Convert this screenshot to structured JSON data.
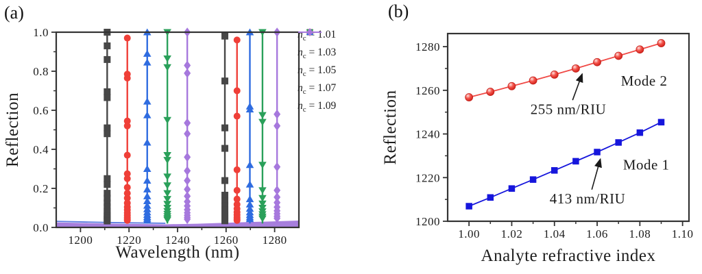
{
  "panel_a": {
    "tag": "(a)"
  },
  "panel_b": {
    "tag": "(b)"
  },
  "chart_data": [
    {
      "id": "a",
      "type": "line",
      "title": "",
      "xlabel": "Wavelength (nm)",
      "ylabel": "Reflection",
      "xlim": [
        1190,
        1290
      ],
      "ylim": [
        0.0,
        1.0
      ],
      "xticks": [
        1200,
        1220,
        1240,
        1260,
        1280
      ],
      "xtick_labels": [
        "1200",
        "1220",
        "1240",
        "1260",
        "1280"
      ],
      "x_minor_ticks": [
        1210,
        1230,
        1250,
        1270
      ],
      "yticks": [
        0.0,
        0.2,
        0.4,
        0.6,
        0.8,
        1.0
      ],
      "ytick_labels": [
        "0.0",
        "0.2",
        "0.4",
        "0.6",
        "0.8",
        "1.0"
      ],
      "y_minor_ticks": [
        0.1,
        0.3,
        0.5,
        0.7,
        0.9
      ],
      "grid": false,
      "legend_position": "right-outside",
      "legend_var": "n",
      "legend_sub": "c",
      "baseline": {
        "fill_color": "#a77fdd",
        "edge_color": "#5b7be0",
        "top_points": [
          [
            1190,
            0.026
          ],
          [
            1200,
            0.023
          ],
          [
            1215,
            0.019
          ],
          [
            1235,
            0.016
          ],
          [
            1248,
            0.019
          ],
          [
            1265,
            0.026
          ],
          [
            1280,
            0.031
          ],
          [
            1290,
            0.035
          ]
        ],
        "edge_until": 1246
      },
      "series": [
        {
          "name": "nc = 1.01",
          "value": "1.01",
          "color": "#474747",
          "marker": "square",
          "resonances": [
            {
              "wavelength": 1211.0,
              "markers": [
                1.0,
                0.93,
                0.86,
                0.695,
                0.665,
                0.51,
                0.48,
                0.25,
                0.22,
                0.175,
                0.15,
                0.125,
                0.105,
                0.085,
                0.07,
                0.058,
                0.048,
                0.04,
                0.033
              ]
            },
            {
              "wavelength": 1259.5,
              "markers": [
                0.98,
                0.75,
                0.51,
                0.405,
                0.24,
                0.165,
                0.135,
                0.11,
                0.09,
                0.074,
                0.061,
                0.05,
                0.041,
                0.034
              ]
            }
          ]
        },
        {
          "name": "nc = 1.03",
          "value": "1.03",
          "color": "#ef3f38",
          "marker": "circle",
          "resonances": [
            {
              "wavelength": 1219.3,
              "markers": [
                0.97,
                0.785,
                0.765,
                0.545,
                0.52,
                0.37,
                0.275,
                0.25,
                0.205,
                0.175,
                0.15,
                0.125,
                0.105,
                0.09,
                0.075,
                0.062,
                0.052,
                0.043,
                0.036
              ]
            },
            {
              "wavelength": 1264.5,
              "markers": [
                0.96,
                0.7,
                0.57,
                0.295,
                0.19,
                0.145,
                0.118,
                0.096,
                0.078,
                0.064,
                0.052,
                0.043,
                0.036
              ]
            }
          ]
        },
        {
          "name": "nc = 1.05",
          "value": "1.05",
          "color": "#2f6ce0",
          "marker": "triangle-up",
          "resonances": [
            {
              "wavelength": 1227.5,
              "markers": [
                1.0,
                0.89,
                0.845,
                0.645,
                0.575,
                0.435,
                0.3,
                0.24,
                0.195,
                0.16,
                0.135,
                0.112,
                0.094,
                0.078,
                0.065,
                0.054,
                0.045,
                0.037
              ]
            },
            {
              "wavelength": 1269.8,
              "markers": [
                1.0,
                0.62,
                0.605,
                0.32,
                0.22,
                0.145,
                0.118,
                0.096,
                0.078,
                0.064,
                0.052,
                0.043
              ]
            }
          ]
        },
        {
          "name": "nc = 1.07",
          "value": "1.07",
          "color": "#2aa05a",
          "marker": "triangle-down",
          "resonances": [
            {
              "wavelength": 1235.8,
              "markers": [
                1.0,
                0.865,
                0.82,
                0.55,
                0.37,
                0.345,
                0.26,
                0.215,
                0.175,
                0.145,
                0.12,
                0.1,
                0.083,
                0.069,
                0.057,
                0.047,
                0.039
              ]
            },
            {
              "wavelength": 1275.0,
              "markers": [
                1.0,
                0.575,
                0.54,
                0.32,
                0.19,
                0.15,
                0.122,
                0.1,
                0.082,
                0.067,
                0.055,
                0.045
              ]
            }
          ]
        },
        {
          "name": "nc = 1.09",
          "value": "1.09",
          "color": "#a678dd",
          "marker": "diamond",
          "resonances": [
            {
              "wavelength": 1244.0,
              "markers": [
                1.0,
                0.83,
                0.79,
                0.535,
                0.48,
                0.36,
                0.29,
                0.24,
                0.195,
                0.16,
                0.132,
                0.11,
                0.091,
                0.075,
                0.062,
                0.051,
                0.042
              ]
            },
            {
              "wavelength": 1281.0,
              "markers": [
                1.0,
                0.58,
                0.52,
                0.31,
                0.19,
                0.155,
                0.127,
                0.104,
                0.085,
                0.07,
                0.057,
                0.047
              ]
            }
          ]
        }
      ]
    },
    {
      "id": "b",
      "type": "scatter",
      "title": "",
      "xlabel": "Analyte refractive index",
      "ylabel": "Reflection",
      "xlim": [
        0.99,
        1.103
      ],
      "ylim": [
        1200,
        1286
      ],
      "xticks": [
        1.0,
        1.02,
        1.04,
        1.06,
        1.08,
        1.1
      ],
      "xtick_labels": [
        "1.00",
        "1.02",
        "1.04",
        "1.06",
        "1.08",
        "1.10"
      ],
      "x_minor_ticks": [
        1.01,
        1.03,
        1.05,
        1.07,
        1.09
      ],
      "yticks": [
        1200,
        1220,
        1240,
        1260,
        1280
      ],
      "ytick_labels": [
        "1200",
        "1220",
        "1240",
        "1260",
        "1280"
      ],
      "y_minor_ticks": [
        1210,
        1230,
        1250,
        1270
      ],
      "grid": false,
      "series": [
        {
          "name": "Mode 2",
          "sensitivity": "255 nm/RIU",
          "color": "#f04945",
          "marker": "sphere",
          "x": [
            1.0,
            1.01,
            1.02,
            1.03,
            1.04,
            1.05,
            1.06,
            1.07,
            1.08,
            1.09
          ],
          "y": [
            1256.8,
            1259.3,
            1261.9,
            1264.5,
            1267.2,
            1270.0,
            1272.9,
            1275.8,
            1278.7,
            1281.6
          ]
        },
        {
          "name": "Mode 1",
          "sensitivity": "413 nm/RIU",
          "color": "#1616dc",
          "marker": "square",
          "x": [
            1.0,
            1.01,
            1.02,
            1.03,
            1.04,
            1.05,
            1.06,
            1.07,
            1.08,
            1.09
          ],
          "y": [
            1206.9,
            1210.9,
            1215.0,
            1219.1,
            1223.3,
            1227.5,
            1231.7,
            1236.1,
            1240.6,
            1245.4
          ]
        }
      ],
      "annotations": [
        {
          "text": "Mode 2",
          "x": 1.082,
          "y": 1264.5
        },
        {
          "text": "255 nm/RIU",
          "x": 1.0465,
          "y": 1251.5,
          "arrow": {
            "from": [
              1.0485,
              1255.5
            ],
            "to": [
              1.053,
              1267.5
            ]
          }
        },
        {
          "text": "Mode 1",
          "x": 1.083,
          "y": 1226.0
        },
        {
          "text": "413 nm/RIU",
          "x": 1.0555,
          "y": 1210.5,
          "arrow": {
            "from": [
              1.0575,
              1214.5
            ],
            "to": [
              1.0615,
              1228.5
            ]
          }
        }
      ]
    }
  ]
}
